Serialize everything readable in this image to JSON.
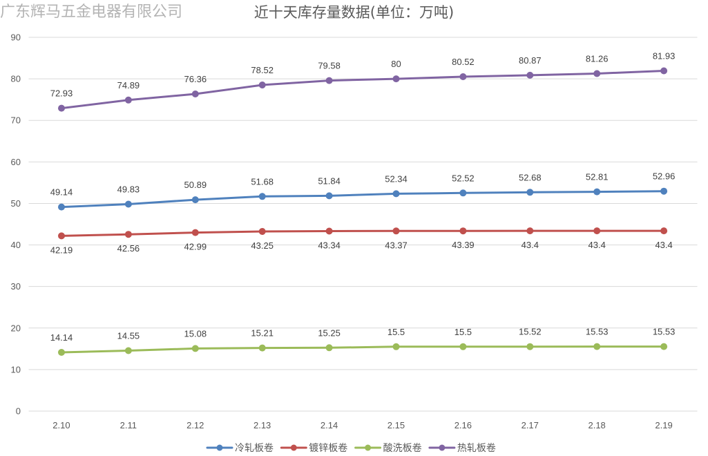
{
  "header": {
    "company": "广东辉马五金电器有限公司"
  },
  "chart_data": {
    "type": "line",
    "title": "近十天库存量数据(单位：万吨)",
    "ylim": [
      0,
      90
    ],
    "yticks": [
      0,
      10,
      20,
      30,
      40,
      50,
      60,
      70,
      80,
      90
    ],
    "grid": true,
    "legend": "bottom",
    "categories": [
      "2.10",
      "2.11",
      "2.12",
      "2.13",
      "2.14",
      "2.15",
      "2.16",
      "2.17",
      "2.18",
      "2.19"
    ],
    "series": [
      {
        "name": "冷轧板卷",
        "color": "#4f81bd",
        "values": [
          49.14,
          49.83,
          50.89,
          51.68,
          51.84,
          52.34,
          52.52,
          52.68,
          52.81,
          52.96
        ]
      },
      {
        "name": "镀锌板卷",
        "color": "#c0504d",
        "values": [
          42.19,
          42.56,
          42.99,
          43.25,
          43.34,
          43.37,
          43.39,
          43.4,
          43.4,
          43.4
        ]
      },
      {
        "name": "酸洗板卷",
        "color": "#9bbb59",
        "values": [
          14.14,
          14.55,
          15.08,
          15.21,
          15.25,
          15.5,
          15.5,
          15.52,
          15.53,
          15.53
        ]
      },
      {
        "name": "热轧板卷",
        "color": "#8064a2",
        "values": [
          72.93,
          74.89,
          76.36,
          78.52,
          79.58,
          80,
          80.52,
          80.87,
          81.26,
          81.93
        ]
      }
    ]
  }
}
